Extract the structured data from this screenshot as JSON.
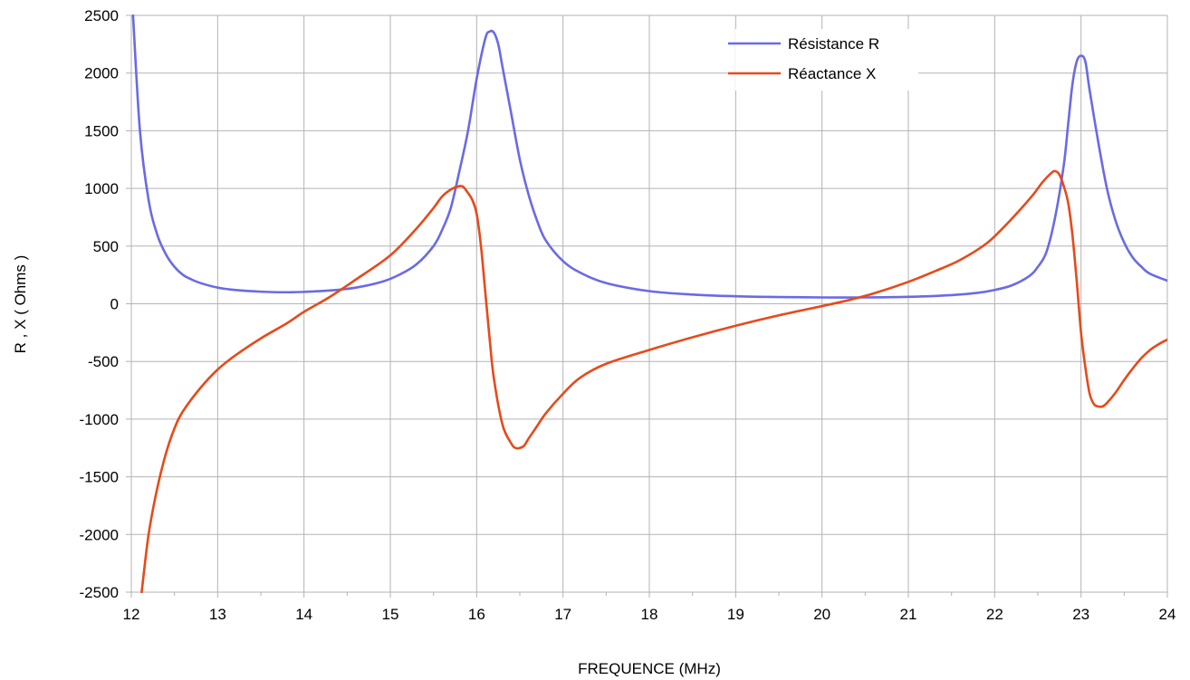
{
  "chart_data": {
    "type": "line",
    "title": "",
    "xlabel": "FREQUENCE (MHz)",
    "ylabel": "R , X ( Ohms )",
    "xlim": [
      12,
      24
    ],
    "ylim": [
      -2500,
      2500
    ],
    "xticks": [
      "12",
      "13",
      "14",
      "15",
      "16",
      "17",
      "18",
      "19",
      "20",
      "21",
      "22",
      "23",
      "24"
    ],
    "yticks": [
      "2500",
      "2000",
      "1500",
      "1000",
      "500",
      "0",
      "-500",
      "-1000",
      "-1500",
      "-2000",
      "-2500"
    ],
    "grid": true,
    "legend_position": "top-right",
    "series": [
      {
        "name": "Résistance R",
        "color": "#6a6ae6",
        "x": [
          12.02,
          12.1,
          12.2,
          12.3,
          12.4,
          12.5,
          12.6,
          12.7,
          12.8,
          13.0,
          13.2,
          13.5,
          13.8,
          14.0,
          14.3,
          14.6,
          14.9,
          15.1,
          15.3,
          15.5,
          15.6,
          15.7,
          15.8,
          15.9,
          16.0,
          16.1,
          16.15,
          16.2,
          16.25,
          16.3,
          16.4,
          16.5,
          16.6,
          16.7,
          16.8,
          17.0,
          17.2,
          17.5,
          18.0,
          18.5,
          19.0,
          19.5,
          20.0,
          20.5,
          21.0,
          21.5,
          21.8,
          22.0,
          22.2,
          22.4,
          22.5,
          22.6,
          22.7,
          22.8,
          22.85,
          22.9,
          22.95,
          23.0,
          23.05,
          23.1,
          23.2,
          23.3,
          23.4,
          23.5,
          23.6,
          23.7,
          23.8,
          24.0
        ],
        "y": [
          2500,
          1500,
          900,
          600,
          430,
          320,
          250,
          210,
          180,
          140,
          120,
          105,
          100,
          103,
          115,
          140,
          190,
          250,
          340,
          500,
          640,
          830,
          1150,
          1500,
          1950,
          2300,
          2360,
          2350,
          2250,
          2050,
          1650,
          1250,
          950,
          720,
          550,
          370,
          270,
          180,
          110,
          80,
          65,
          58,
          55,
          55,
          60,
          75,
          95,
          120,
          160,
          240,
          320,
          450,
          750,
          1200,
          1550,
          1900,
          2100,
          2150,
          2100,
          1850,
          1400,
          1000,
          720,
          530,
          400,
          320,
          260,
          200
        ]
      },
      {
        "name": "Réactance  X",
        "color": "#e64a1a",
        "x": [
          12.12,
          12.2,
          12.3,
          12.4,
          12.5,
          12.6,
          12.8,
          13.0,
          13.2,
          13.5,
          13.8,
          14.0,
          14.3,
          14.6,
          15.0,
          15.3,
          15.5,
          15.6,
          15.7,
          15.8,
          15.85,
          15.9,
          15.95,
          16.0,
          16.05,
          16.1,
          16.15,
          16.2,
          16.3,
          16.4,
          16.45,
          16.5,
          16.55,
          16.6,
          16.7,
          16.8,
          17.0,
          17.2,
          17.5,
          18.0,
          18.5,
          19.0,
          19.5,
          20.0,
          20.3,
          20.6,
          21.0,
          21.3,
          21.6,
          21.9,
          22.1,
          22.3,
          22.45,
          22.55,
          22.65,
          22.7,
          22.75,
          22.8,
          22.85,
          22.9,
          22.95,
          23.0,
          23.05,
          23.1,
          23.15,
          23.2,
          23.25,
          23.3,
          23.4,
          23.5,
          23.6,
          23.7,
          23.8,
          23.9,
          24.0
        ],
        "y": [
          -2500,
          -2000,
          -1600,
          -1300,
          -1080,
          -930,
          -730,
          -570,
          -450,
          -300,
          -170,
          -70,
          60,
          210,
          420,
          650,
          830,
          930,
          990,
          1020,
          1010,
          960,
          900,
          780,
          500,
          100,
          -300,
          -650,
          -1050,
          -1210,
          -1250,
          -1250,
          -1230,
          -1170,
          -1060,
          -950,
          -780,
          -640,
          -520,
          -400,
          -290,
          -190,
          -100,
          -20,
          30,
          90,
          190,
          280,
          380,
          520,
          660,
          820,
          950,
          1050,
          1130,
          1150,
          1120,
          1020,
          880,
          600,
          200,
          -250,
          -550,
          -780,
          -870,
          -890,
          -890,
          -860,
          -770,
          -660,
          -560,
          -470,
          -400,
          -350,
          -310
        ]
      }
    ]
  }
}
